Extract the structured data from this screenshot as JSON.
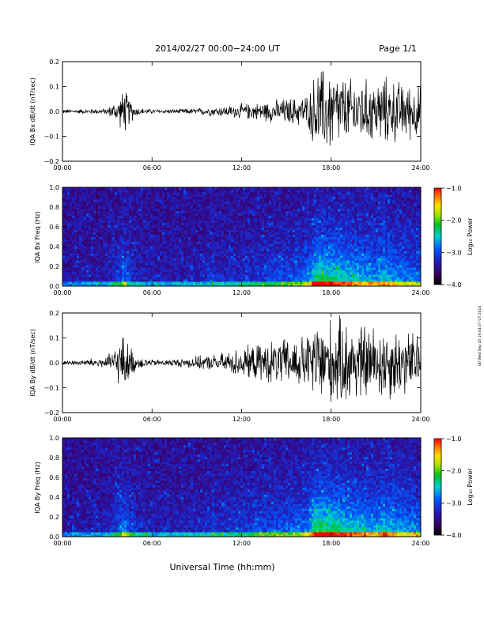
{
  "header": {
    "title": "2014/02/27  00:00−24:00 UT",
    "page": "Page 1/1"
  },
  "footer": {
    "xlabel": "Universal Time (hh:mm)",
    "side_stamp": "rdf Wed Sep 10 19:04:07 UT 2014"
  },
  "colorbar": {
    "label": "Log₁₀ Power",
    "ticks": [
      "−1.0",
      "−2.0",
      "−3.0",
      "−4.0"
    ],
    "values": [
      -1.0,
      -2.0,
      -3.0,
      -4.0
    ],
    "range": [
      -4.0,
      -1.0
    ]
  },
  "chart_data": [
    {
      "type": "line",
      "ylabel": "IQA Bx dB/dt (nT/sec)",
      "x_ticks": [
        "00:00",
        "06:00",
        "12:00",
        "18:00",
        "24:00"
      ],
      "y_ticks": [
        "0.2",
        "0.1",
        "0.0",
        "−0.1",
        "−0.2"
      ],
      "xlim": [
        0,
        24
      ],
      "ylim": [
        -0.2,
        0.2
      ],
      "envelope": {
        "x_hours": [
          0,
          1,
          2,
          3,
          3.8,
          4.1,
          4.6,
          5.0,
          6,
          7,
          8,
          9,
          10,
          11,
          12,
          13,
          14,
          15,
          16,
          16.5,
          17.0,
          17.5,
          18,
          19,
          20,
          21,
          21.5,
          22,
          23,
          24
        ],
        "amplitude": [
          0.01,
          0.01,
          0.012,
          0.015,
          0.06,
          0.11,
          0.05,
          0.02,
          0.01,
          0.01,
          0.012,
          0.015,
          0.02,
          0.025,
          0.035,
          0.04,
          0.05,
          0.06,
          0.07,
          0.08,
          0.2,
          0.2,
          0.2,
          0.15,
          0.15,
          0.14,
          0.16,
          0.15,
          0.13,
          0.12
        ]
      }
    },
    {
      "type": "heatmap",
      "ylabel": "IQA Bx Freq (Hz)",
      "x_ticks": [
        "00:00",
        "06:00",
        "12:00",
        "18:00",
        "24:00"
      ],
      "y_ticks": [
        "1.0",
        "0.8",
        "0.6",
        "0.4",
        "0.2",
        "0.0"
      ],
      "xlim": [
        0,
        24
      ],
      "ylim": [
        0.0,
        1.0
      ],
      "activity": {
        "x_hours": [
          0,
          3,
          3.8,
          4.1,
          4.6,
          6,
          9,
          10,
          10.1,
          10.3,
          12,
          14,
          16,
          16.5,
          17.0,
          18,
          19,
          20,
          21,
          21.5,
          22,
          23,
          24
        ],
        "level": [
          0.05,
          0.08,
          0.3,
          0.45,
          0.2,
          0.1,
          0.12,
          0.15,
          0.35,
          0.15,
          0.2,
          0.3,
          0.4,
          0.5,
          0.9,
          0.85,
          0.7,
          0.65,
          0.55,
          0.7,
          0.6,
          0.5,
          0.45
        ]
      }
    },
    {
      "type": "line",
      "ylabel": "IQA By dB/dt (nT/sec)",
      "x_ticks": [
        "00:00",
        "06:00",
        "12:00",
        "18:00",
        "24:00"
      ],
      "y_ticks": [
        "0.2",
        "0.1",
        "0.0",
        "−0.1",
        "−0.2"
      ],
      "xlim": [
        0,
        24
      ],
      "ylim": [
        -0.2,
        0.2
      ],
      "envelope": {
        "x_hours": [
          0,
          1,
          2,
          3,
          3.8,
          4.1,
          4.6,
          5.0,
          6,
          7,
          8,
          9,
          10,
          11,
          12,
          13,
          14,
          15,
          16,
          16.5,
          17.0,
          17.5,
          18,
          19,
          20,
          21,
          21.5,
          22,
          23,
          24
        ],
        "amplitude": [
          0.01,
          0.012,
          0.02,
          0.03,
          0.1,
          0.13,
          0.07,
          0.03,
          0.015,
          0.015,
          0.02,
          0.03,
          0.035,
          0.05,
          0.07,
          0.08,
          0.1,
          0.11,
          0.12,
          0.13,
          0.2,
          0.2,
          0.2,
          0.2,
          0.18,
          0.17,
          0.18,
          0.17,
          0.15,
          0.14
        ]
      }
    },
    {
      "type": "heatmap",
      "ylabel": "IQA By Freq (Hz)",
      "x_ticks": [
        "00:00",
        "06:00",
        "12:00",
        "18:00",
        "24:00"
      ],
      "y_ticks": [
        "1.0",
        "0.8",
        "0.6",
        "0.4",
        "0.2",
        "0.0"
      ],
      "xlim": [
        0,
        24
      ],
      "ylim": [
        0.0,
        1.0
      ],
      "activity": {
        "x_hours": [
          0,
          3,
          3.8,
          4.1,
          4.6,
          6,
          9,
          10,
          10.1,
          10.3,
          12,
          14,
          16,
          16.5,
          17.0,
          18,
          19,
          20,
          21,
          21.5,
          22,
          23,
          24
        ],
        "level": [
          0.05,
          0.1,
          0.35,
          0.55,
          0.25,
          0.12,
          0.15,
          0.18,
          0.4,
          0.18,
          0.25,
          0.35,
          0.45,
          0.55,
          0.95,
          0.9,
          0.75,
          0.7,
          0.6,
          0.75,
          0.65,
          0.55,
          0.5
        ]
      }
    }
  ]
}
